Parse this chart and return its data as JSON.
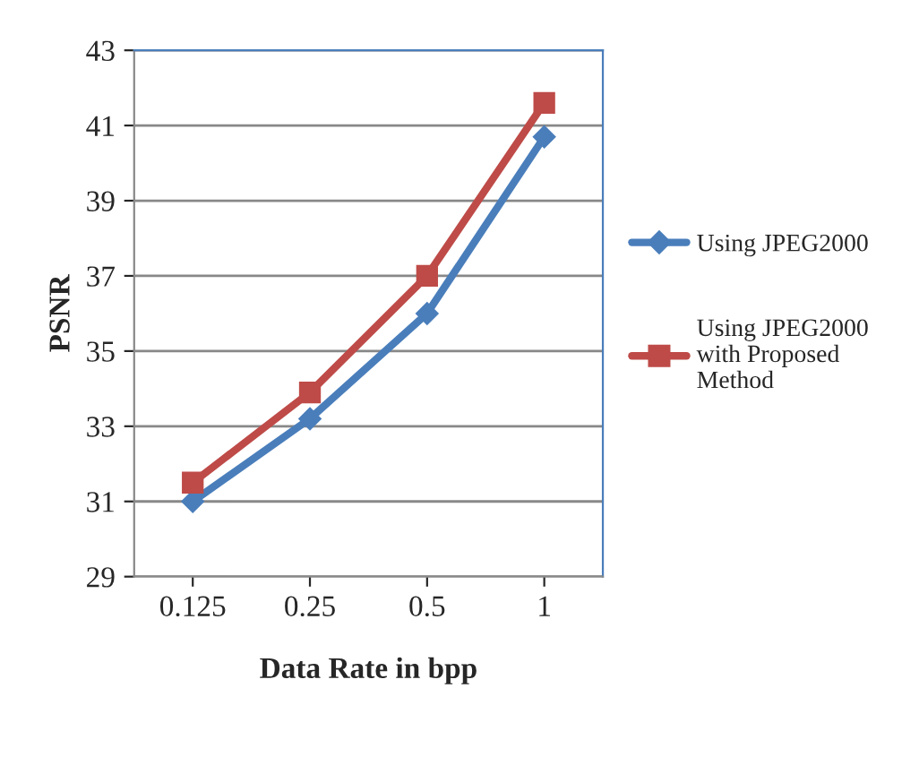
{
  "chart_data": {
    "type": "line",
    "xlabel": "Data Rate in bpp",
    "ylabel": "PSNR",
    "categories": [
      "0.125",
      "0.25",
      "0.5",
      "1"
    ],
    "series": [
      {
        "name": "Using JPEG2000",
        "color": "#4a7ebb",
        "values": [
          31.0,
          33.2,
          36.0,
          40.7
        ],
        "marker": "diamond"
      },
      {
        "name": "Using JPEG2000\nwith Proposed\nMethod",
        "color": "#be4b48",
        "values": [
          31.5,
          33.9,
          37.0,
          41.6
        ],
        "marker": "square"
      }
    ],
    "ylim": [
      29,
      43
    ],
    "yticks": [
      29,
      31,
      33,
      35,
      37,
      39,
      41,
      43
    ],
    "grid": "y",
    "legend": "right",
    "line_style": "solid"
  }
}
